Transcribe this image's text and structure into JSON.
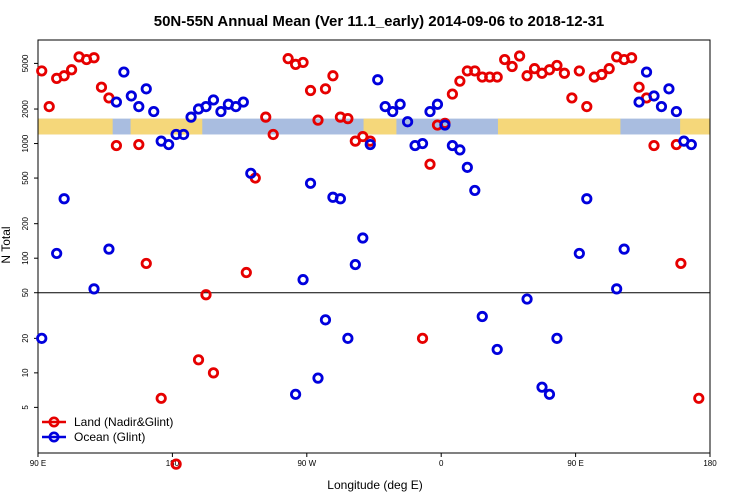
{
  "chart_data": {
    "type": "scatter",
    "title": "50N-55N Annual Mean (Ver 11.1_early)   2014-09-06 to 2018-12-31",
    "xlabel": "Longitude (deg E)",
    "ylabel": "N Total",
    "x_tick_labels": [
      "90 E",
      "180",
      "90 W",
      "0",
      "90 E",
      "180"
    ],
    "x_tick_values": [
      90,
      180,
      270,
      360,
      450,
      540
    ],
    "xlim": [
      90,
      540
    ],
    "y_scale": "log",
    "ylim": [
      2,
      8000
    ],
    "y_tick_values": [
      5,
      10,
      20,
      50,
      100,
      200,
      500,
      1000,
      2000,
      5000
    ],
    "y_tick_labels": [
      "5",
      "10",
      "20",
      "50",
      "100",
      "200",
      "500",
      "1000",
      "2000",
      "5000"
    ],
    "reference_line": 50,
    "land_mask_band": {
      "y_range": [
        1200,
        1650
      ],
      "land_color": "#f5d77a",
      "ocean_color": "#a9bde0",
      "land_x": [
        [
          90,
          140
        ],
        [
          152,
          200
        ],
        [
          308,
          330
        ],
        [
          398,
          480
        ],
        [
          520,
          540
        ]
      ]
    },
    "legend": {
      "position": "bottom-left"
    },
    "series": [
      {
        "name": "Land (Nadir&Glint)",
        "color": "#e60000",
        "points": [
          [
            92.5,
            4300
          ],
          [
            97.5,
            2100
          ],
          [
            102.5,
            3700
          ],
          [
            107.5,
            3900
          ],
          [
            112.5,
            4400
          ],
          [
            117.5,
            5700
          ],
          [
            122.5,
            5400
          ],
          [
            127.5,
            5600
          ],
          [
            132.5,
            3100
          ],
          [
            137.5,
            2500
          ],
          [
            142.5,
            960
          ],
          [
            157.5,
            980
          ],
          [
            162.5,
            90
          ],
          [
            172.5,
            6
          ],
          [
            182.5,
            1.6
          ],
          [
            197.5,
            13
          ],
          [
            202.5,
            48
          ],
          [
            207.5,
            10
          ],
          [
            229.5,
            75
          ],
          [
            235.5,
            500
          ],
          [
            242.5,
            1700
          ],
          [
            247.5,
            1200
          ],
          [
            257.5,
            5500
          ],
          [
            262.5,
            4900
          ],
          [
            267.5,
            5100
          ],
          [
            272.5,
            2900
          ],
          [
            277.5,
            1600
          ],
          [
            282.5,
            3000
          ],
          [
            287.5,
            3900
          ],
          [
            292.5,
            1700
          ],
          [
            297.5,
            1650
          ],
          [
            302.5,
            1050
          ],
          [
            307.5,
            1150
          ],
          [
            312.5,
            1050
          ],
          [
            347.5,
            20
          ],
          [
            352.5,
            660
          ],
          [
            357.5,
            1450
          ],
          [
            362.5,
            1500
          ],
          [
            367.5,
            2700
          ],
          [
            372.5,
            3500
          ],
          [
            377.5,
            4300
          ],
          [
            382.5,
            4300
          ],
          [
            387.5,
            3800
          ],
          [
            392.5,
            3800
          ],
          [
            397.5,
            3800
          ],
          [
            402.5,
            5400
          ],
          [
            407.5,
            4700
          ],
          [
            412.5,
            5800
          ],
          [
            417.5,
            3900
          ],
          [
            422.5,
            4500
          ],
          [
            427.5,
            4100
          ],
          [
            432.5,
            4400
          ],
          [
            437.5,
            4800
          ],
          [
            442.5,
            4100
          ],
          [
            447.5,
            2500
          ],
          [
            452.5,
            4300
          ],
          [
            457.5,
            2100
          ],
          [
            462.5,
            3800
          ],
          [
            467.5,
            4000
          ],
          [
            472.5,
            4500
          ],
          [
            477.5,
            5700
          ],
          [
            482.5,
            5400
          ],
          [
            487.5,
            5600
          ],
          [
            492.5,
            3100
          ],
          [
            497.5,
            2500
          ],
          [
            502.5,
            960
          ],
          [
            517.5,
            980
          ],
          [
            520.5,
            90
          ],
          [
            532.5,
            6
          ]
        ]
      },
      {
        "name": "Ocean (Glint)",
        "color": "#0000dd",
        "points": [
          [
            92.5,
            20
          ],
          [
            102.5,
            110
          ],
          [
            107.5,
            330
          ],
          [
            127.5,
            54
          ],
          [
            137.5,
            120
          ],
          [
            142.5,
            2300
          ],
          [
            147.5,
            4200
          ],
          [
            152.5,
            2600
          ],
          [
            157.5,
            2100
          ],
          [
            162.5,
            3000
          ],
          [
            167.5,
            1900
          ],
          [
            172.5,
            1050
          ],
          [
            177.5,
            980
          ],
          [
            182.5,
            1200
          ],
          [
            187.5,
            1200
          ],
          [
            192.5,
            1700
          ],
          [
            197.5,
            2000
          ],
          [
            202.5,
            2100
          ],
          [
            207.5,
            2400
          ],
          [
            212.5,
            1900
          ],
          [
            217.5,
            2200
          ],
          [
            222.5,
            2100
          ],
          [
            227.5,
            2300
          ],
          [
            232.5,
            550
          ],
          [
            262.5,
            6.5
          ],
          [
            267.5,
            65
          ],
          [
            272.5,
            450
          ],
          [
            277.5,
            9
          ],
          [
            282.5,
            29
          ],
          [
            292.5,
            330
          ],
          [
            287.5,
            340
          ],
          [
            297.5,
            20
          ],
          [
            302.5,
            88
          ],
          [
            307.5,
            150
          ],
          [
            312.5,
            980
          ],
          [
            317.5,
            3600
          ],
          [
            322.5,
            2100
          ],
          [
            327.5,
            1900
          ],
          [
            332.5,
            2200
          ],
          [
            337.5,
            1550
          ],
          [
            342.5,
            960
          ],
          [
            347.5,
            1000
          ],
          [
            352.5,
            1900
          ],
          [
            357.5,
            2200
          ],
          [
            362.5,
            1450
          ],
          [
            367.5,
            960
          ],
          [
            372.5,
            880
          ],
          [
            377.5,
            620
          ],
          [
            382.5,
            390
          ],
          [
            387.5,
            31
          ],
          [
            397.5,
            16
          ],
          [
            417.5,
            44
          ],
          [
            427.5,
            7.5
          ],
          [
            432.5,
            6.5
          ],
          [
            437.5,
            20
          ],
          [
            452.5,
            110
          ],
          [
            457.5,
            330
          ],
          [
            477.5,
            54
          ],
          [
            482.5,
            120
          ],
          [
            492.5,
            2300
          ],
          [
            497.5,
            4200
          ],
          [
            502.5,
            2600
          ],
          [
            507.5,
            2100
          ],
          [
            512.5,
            3000
          ],
          [
            517.5,
            1900
          ],
          [
            522.5,
            1050
          ],
          [
            527.5,
            980
          ]
        ]
      }
    ]
  }
}
